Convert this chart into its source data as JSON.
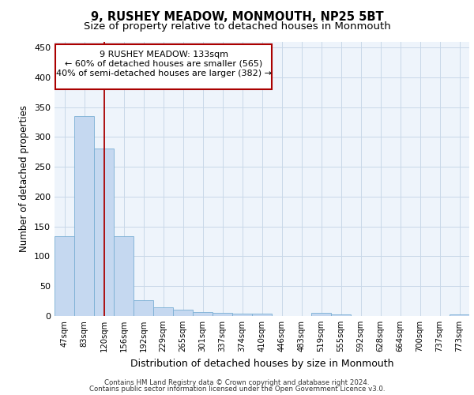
{
  "title": "9, RUSHEY MEADOW, MONMOUTH, NP25 5BT",
  "subtitle": "Size of property relative to detached houses in Monmouth",
  "xlabel": "Distribution of detached houses by size in Monmouth",
  "ylabel": "Number of detached properties",
  "categories": [
    "47sqm",
    "83sqm",
    "120sqm",
    "156sqm",
    "192sqm",
    "229sqm",
    "265sqm",
    "301sqm",
    "337sqm",
    "374sqm",
    "410sqm",
    "446sqm",
    "483sqm",
    "519sqm",
    "555sqm",
    "592sqm",
    "628sqm",
    "664sqm",
    "700sqm",
    "737sqm",
    "773sqm"
  ],
  "values": [
    134,
    335,
    281,
    134,
    27,
    15,
    11,
    7,
    5,
    4,
    4,
    0,
    0,
    5,
    2,
    0,
    0,
    0,
    0,
    0,
    3
  ],
  "bar_color": "#c5d8f0",
  "bar_edge_color": "#7aafd4",
  "grid_color": "#c8d8e8",
  "bg_color": "#eef4fb",
  "vline_x": 2,
  "vline_color": "#aa0000",
  "annotation_line1": "9 RUSHEY MEADOW: 133sqm",
  "annotation_line2": "← 60% of detached houses are smaller (565)",
  "annotation_line3": "40% of semi-detached houses are larger (382) →",
  "annotation_box_color": "#ffffff",
  "annotation_box_edge": "#aa0000",
  "ylim": [
    0,
    460
  ],
  "yticks": [
    0,
    50,
    100,
    150,
    200,
    250,
    300,
    350,
    400,
    450
  ],
  "footer_line1": "Contains HM Land Registry data © Crown copyright and database right 2024.",
  "footer_line2": "Contains public sector information licensed under the Open Government Licence v3.0."
}
